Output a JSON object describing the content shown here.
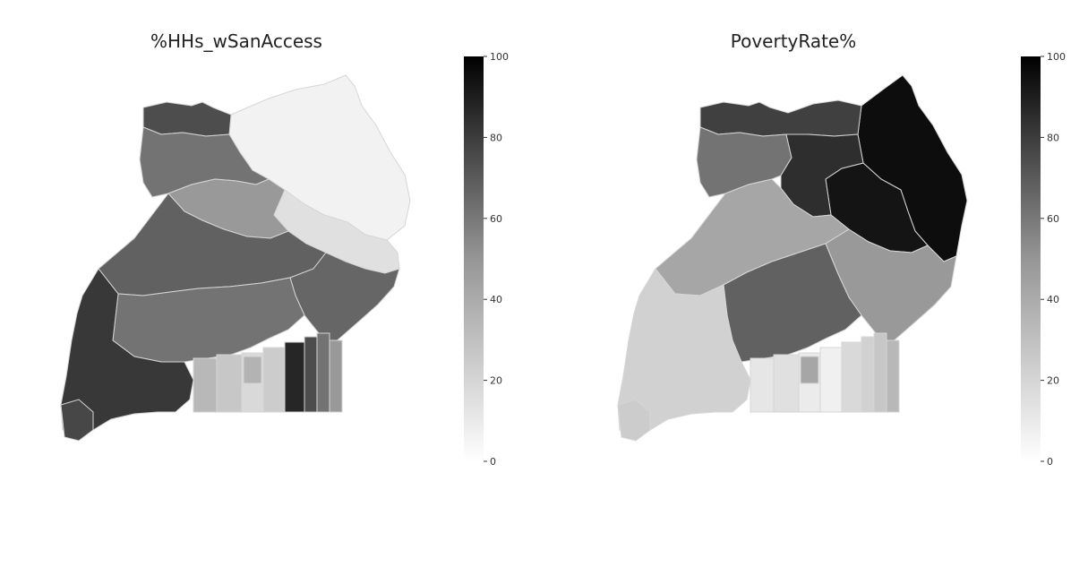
{
  "panels": [
    {
      "title": "%HHs_wSanAccess",
      "colorbar": {
        "min": 0,
        "max": 100,
        "ticks": [
          0,
          20,
          40,
          60,
          80,
          100
        ],
        "cmap": "Greys"
      },
      "regions": {
        "north_east": 5,
        "north_east_lower": 12,
        "north_central": 40,
        "north_west": 55,
        "west_nile_top": 70,
        "central": 62,
        "mid_central": 55,
        "east": 60,
        "south_west": 78,
        "south_west_tip": 72,
        "lake_blocks": [
          28,
          22,
          15,
          20,
          85,
          70,
          55,
          40,
          30
        ]
      }
    },
    {
      "title": "PovertyRate%",
      "colorbar": {
        "min": 0,
        "max": 100,
        "ticks": [
          0,
          20,
          40,
          60,
          80,
          100
        ],
        "cmap": "Greys"
      },
      "regions": {
        "north_east": 95,
        "north_east_lower": 92,
        "north_central": 82,
        "north_west": 55,
        "west_nile_top": 75,
        "central": 35,
        "mid_central": 62,
        "east": 40,
        "south_west": 18,
        "south_west_tip": 20,
        "lake_blocks": [
          10,
          12,
          8,
          6,
          15,
          18,
          22,
          28,
          35
        ]
      }
    }
  ],
  "colors": {
    "boundary": "#d6d6d6",
    "ink": "#222222"
  }
}
